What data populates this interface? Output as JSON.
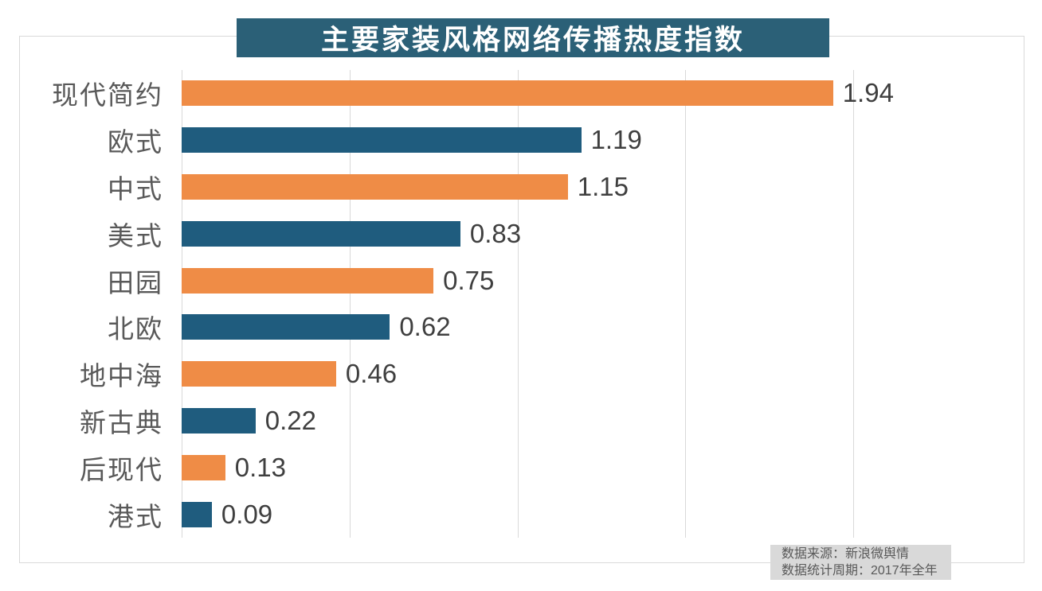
{
  "title": {
    "text": "主要家装风格网络传播热度指数",
    "background": "#2B6077",
    "text_color": "#FFFFFF"
  },
  "chart_data": {
    "type": "bar",
    "orientation": "horizontal",
    "title": "主要家装风格网络传播热度指数",
    "categories": [
      "现代简约",
      "欧式",
      "中式",
      "美式",
      "田园",
      "北欧",
      "地中海",
      "新古典",
      "后现代",
      "港式"
    ],
    "values": [
      1.94,
      1.19,
      1.15,
      0.83,
      0.75,
      0.62,
      0.46,
      0.22,
      0.13,
      0.09
    ],
    "bars": [
      {
        "label": "现代简约",
        "value": 1.94,
        "value_label": "1.94",
        "color": "orange"
      },
      {
        "label": "欧式",
        "value": 1.19,
        "value_label": "1.19",
        "color": "blue"
      },
      {
        "label": "中式",
        "value": 1.15,
        "value_label": "1.15",
        "color": "orange"
      },
      {
        "label": "美式",
        "value": 0.83,
        "value_label": "0.83",
        "color": "blue"
      },
      {
        "label": "田园",
        "value": 0.75,
        "value_label": "0.75",
        "color": "orange"
      },
      {
        "label": "北欧",
        "value": 0.62,
        "value_label": "0.62",
        "color": "blue"
      },
      {
        "label": "地中海",
        "value": 0.46,
        "value_label": "0.46",
        "color": "orange"
      },
      {
        "label": "新古典",
        "value": 0.22,
        "value_label": "0.22",
        "color": "blue"
      },
      {
        "label": "后现代",
        "value": 0.13,
        "value_label": "0.13",
        "color": "orange"
      },
      {
        "label": "港式",
        "value": 0.09,
        "value_label": "0.09",
        "color": "blue"
      }
    ],
    "xlabel": "",
    "ylabel": "",
    "xlim": [
      0,
      2
    ],
    "gridlines": [
      0,
      0.5,
      1.0,
      1.5,
      2.0
    ],
    "grid": "vertical-on",
    "legend": "none",
    "tick_labels_visible": false,
    "palette": {
      "orange": "#EF8C46",
      "blue": "#1F5C7E"
    },
    "gridline_color": "#D9D9D9",
    "frame_border_color": "#D9D9D9",
    "value_label_color": "#3F3F3F",
    "category_label_color": "#595959"
  },
  "footer": {
    "source": "数据来源：新浪微舆情",
    "period": "数据统计周期：2017年全年",
    "background": "#D9D9D9",
    "text_color": "#595959"
  }
}
